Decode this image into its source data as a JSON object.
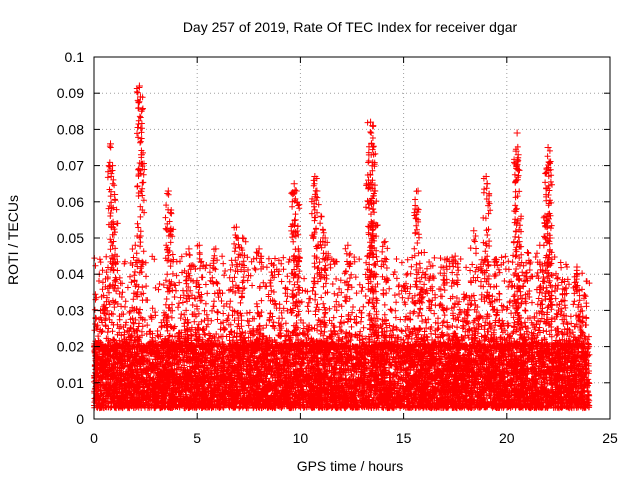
{
  "chart_data": {
    "type": "scatter",
    "title": "Day 257 of 2019, Rate Of TEC Index for receiver dgar",
    "xlabel": "GPS time / hours",
    "ylabel": "ROTI / TECUs",
    "xlim": [
      0,
      25
    ],
    "ylim": [
      0,
      0.1
    ],
    "xticks": [
      0,
      5,
      10,
      15,
      20,
      25
    ],
    "xtick_labels": [
      "0",
      "5",
      "10",
      "15",
      "20",
      "25"
    ],
    "yticks": [
      0,
      0.01,
      0.02,
      0.03,
      0.04,
      0.05,
      0.06,
      0.07,
      0.08,
      0.09,
      0.1
    ],
    "ytick_labels": [
      "0",
      "0.01",
      "0.02",
      "0.03",
      "0.04",
      "0.05",
      "0.06",
      "0.07",
      "0.08",
      "0.09",
      "0.1"
    ],
    "grid": true,
    "marker": "plus",
    "color": "#ff0000",
    "x_extent": [
      0,
      24
    ],
    "baseline_range": [
      0.003,
      0.02
    ],
    "peaks": [
      {
        "x": 0.8,
        "y": 0.076
      },
      {
        "x": 0.9,
        "y": 0.07
      },
      {
        "x": 1.0,
        "y": 0.062
      },
      {
        "x": 2.2,
        "y": 0.092
      },
      {
        "x": 2.25,
        "y": 0.089
      },
      {
        "x": 2.3,
        "y": 0.073
      },
      {
        "x": 2.0,
        "y": 0.048
      },
      {
        "x": 3.6,
        "y": 0.063
      },
      {
        "x": 3.7,
        "y": 0.057
      },
      {
        "x": 4.6,
        "y": 0.047
      },
      {
        "x": 5.1,
        "y": 0.048
      },
      {
        "x": 5.9,
        "y": 0.047
      },
      {
        "x": 6.9,
        "y": 0.053
      },
      {
        "x": 7.2,
        "y": 0.05
      },
      {
        "x": 8.0,
        "y": 0.047
      },
      {
        "x": 8.6,
        "y": 0.043
      },
      {
        "x": 9.7,
        "y": 0.065
      },
      {
        "x": 9.8,
        "y": 0.063
      },
      {
        "x": 9.75,
        "y": 0.055
      },
      {
        "x": 9.9,
        "y": 0.047
      },
      {
        "x": 10.7,
        "y": 0.067
      },
      {
        "x": 10.8,
        "y": 0.063
      },
      {
        "x": 11.0,
        "y": 0.056
      },
      {
        "x": 11.2,
        "y": 0.05
      },
      {
        "x": 12.3,
        "y": 0.048
      },
      {
        "x": 13.4,
        "y": 0.082
      },
      {
        "x": 13.5,
        "y": 0.081
      },
      {
        "x": 13.45,
        "y": 0.076
      },
      {
        "x": 13.3,
        "y": 0.066
      },
      {
        "x": 13.6,
        "y": 0.063
      },
      {
        "x": 13.5,
        "y": 0.054
      },
      {
        "x": 14.1,
        "y": 0.049
      },
      {
        "x": 15.7,
        "y": 0.063
      },
      {
        "x": 15.65,
        "y": 0.058
      },
      {
        "x": 16.0,
        "y": 0.046
      },
      {
        "x": 17.0,
        "y": 0.044
      },
      {
        "x": 17.5,
        "y": 0.045
      },
      {
        "x": 18.4,
        "y": 0.052
      },
      {
        "x": 18.8,
        "y": 0.044
      },
      {
        "x": 19.0,
        "y": 0.067
      },
      {
        "x": 19.05,
        "y": 0.065
      },
      {
        "x": 19.5,
        "y": 0.044
      },
      {
        "x": 20.5,
        "y": 0.079
      },
      {
        "x": 20.45,
        "y": 0.074
      },
      {
        "x": 20.55,
        "y": 0.073
      },
      {
        "x": 20.6,
        "y": 0.049
      },
      {
        "x": 21.0,
        "y": 0.046
      },
      {
        "x": 21.6,
        "y": 0.048
      },
      {
        "x": 22.0,
        "y": 0.075
      },
      {
        "x": 22.05,
        "y": 0.071
      },
      {
        "x": 21.95,
        "y": 0.069
      },
      {
        "x": 21.85,
        "y": 0.056
      },
      {
        "x": 22.1,
        "y": 0.05
      },
      {
        "x": 22.8,
        "y": 0.038
      },
      {
        "x": 23.4,
        "y": 0.042
      },
      {
        "x": 23.6,
        "y": 0.031
      }
    ]
  }
}
